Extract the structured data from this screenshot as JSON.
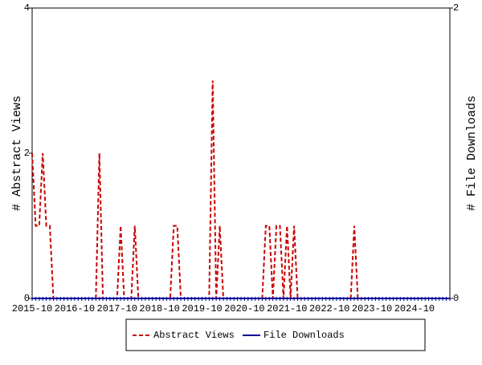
{
  "chart_data": {
    "type": "line",
    "y_label": "# Abstract Views",
    "y2_label": "# File Downloads",
    "categories": [
      "2015-10",
      null,
      null,
      null,
      null,
      null,
      null,
      null,
      null,
      null,
      null,
      null,
      "2016-10",
      null,
      null,
      null,
      null,
      null,
      null,
      null,
      null,
      null,
      null,
      null,
      "2017-10",
      null,
      null,
      null,
      null,
      null,
      null,
      null,
      null,
      null,
      null,
      null,
      "2018-10",
      null,
      null,
      null,
      null,
      null,
      null,
      null,
      null,
      null,
      null,
      null,
      "2019-10",
      null,
      null,
      null,
      null,
      null,
      null,
      null,
      null,
      null,
      null,
      null,
      "2020-10",
      null,
      null,
      null,
      null,
      null,
      null,
      null,
      null,
      null,
      null,
      null,
      "2021-10",
      null,
      null,
      null,
      null,
      null,
      null,
      null,
      null,
      null,
      null,
      null,
      "2022-10",
      null,
      null,
      null,
      null,
      null,
      null,
      null,
      null,
      null,
      null,
      null,
      "2023-10",
      null,
      null,
      null,
      null,
      null,
      null,
      null,
      null,
      null,
      null,
      null,
      "2024-10",
      null,
      null,
      null,
      null,
      null,
      null,
      null,
      null,
      null,
      null
    ],
    "series": [
      {
        "name": "Abstract Views",
        "color": "#cc0000",
        "dashed": true,
        "axis": "y",
        "values": [
          2,
          1,
          1,
          2,
          1,
          1,
          0,
          0,
          0,
          0,
          0,
          0,
          0,
          0,
          0,
          0,
          0,
          0,
          0,
          2,
          0,
          0,
          0,
          0,
          0,
          1,
          0,
          0,
          0,
          1,
          0,
          0,
          0,
          0,
          0,
          0,
          0,
          0,
          0,
          0,
          1,
          1,
          0,
          0,
          0,
          0,
          0,
          0,
          0,
          0,
          0,
          3,
          0,
          1,
          0,
          0,
          0,
          0,
          0,
          0,
          0,
          0,
          0,
          0,
          0,
          0,
          1,
          1,
          0,
          1,
          1,
          0,
          1,
          0,
          1,
          0,
          0,
          0,
          0,
          0,
          0,
          0,
          0,
          0,
          0,
          0,
          0,
          0,
          0,
          0,
          0,
          1,
          0,
          0,
          0,
          0,
          0,
          0,
          0,
          0,
          0,
          0,
          0,
          0,
          0,
          0,
          0,
          0,
          0,
          0,
          0,
          0,
          0,
          0,
          0,
          0,
          0,
          0,
          0
        ]
      },
      {
        "name": "File Downloads",
        "color": "#000099",
        "dashed": false,
        "axis": "y2",
        "values": [
          0,
          0,
          0,
          0,
          0,
          0,
          0,
          0,
          0,
          0,
          0,
          0,
          0,
          0,
          0,
          0,
          0,
          0,
          0,
          0,
          0,
          0,
          0,
          0,
          0,
          0,
          0,
          0,
          0,
          0,
          0,
          0,
          0,
          0,
          0,
          0,
          0,
          0,
          0,
          0,
          0,
          0,
          0,
          0,
          0,
          0,
          0,
          0,
          0,
          0,
          0,
          0,
          0,
          0,
          0,
          0,
          0,
          0,
          0,
          0,
          0,
          0,
          0,
          0,
          0,
          0,
          0,
          0,
          0,
          0,
          0,
          0,
          0,
          0,
          0,
          0,
          0,
          0,
          0,
          0,
          0,
          0,
          0,
          0,
          0,
          0,
          0,
          0,
          0,
          0,
          0,
          0,
          0,
          0,
          0,
          0,
          0,
          0,
          0,
          0,
          0,
          0,
          0,
          0,
          0,
          0,
          0,
          0,
          0,
          0,
          0,
          0,
          0,
          0,
          0,
          0,
          0,
          0,
          0
        ]
      }
    ],
    "ylim": [
      0,
      4
    ],
    "yticks": [
      0,
      2,
      4
    ],
    "y2lim": [
      0,
      2
    ],
    "y2ticks": [
      0,
      2
    ],
    "grid": false,
    "legend": "bottom"
  }
}
